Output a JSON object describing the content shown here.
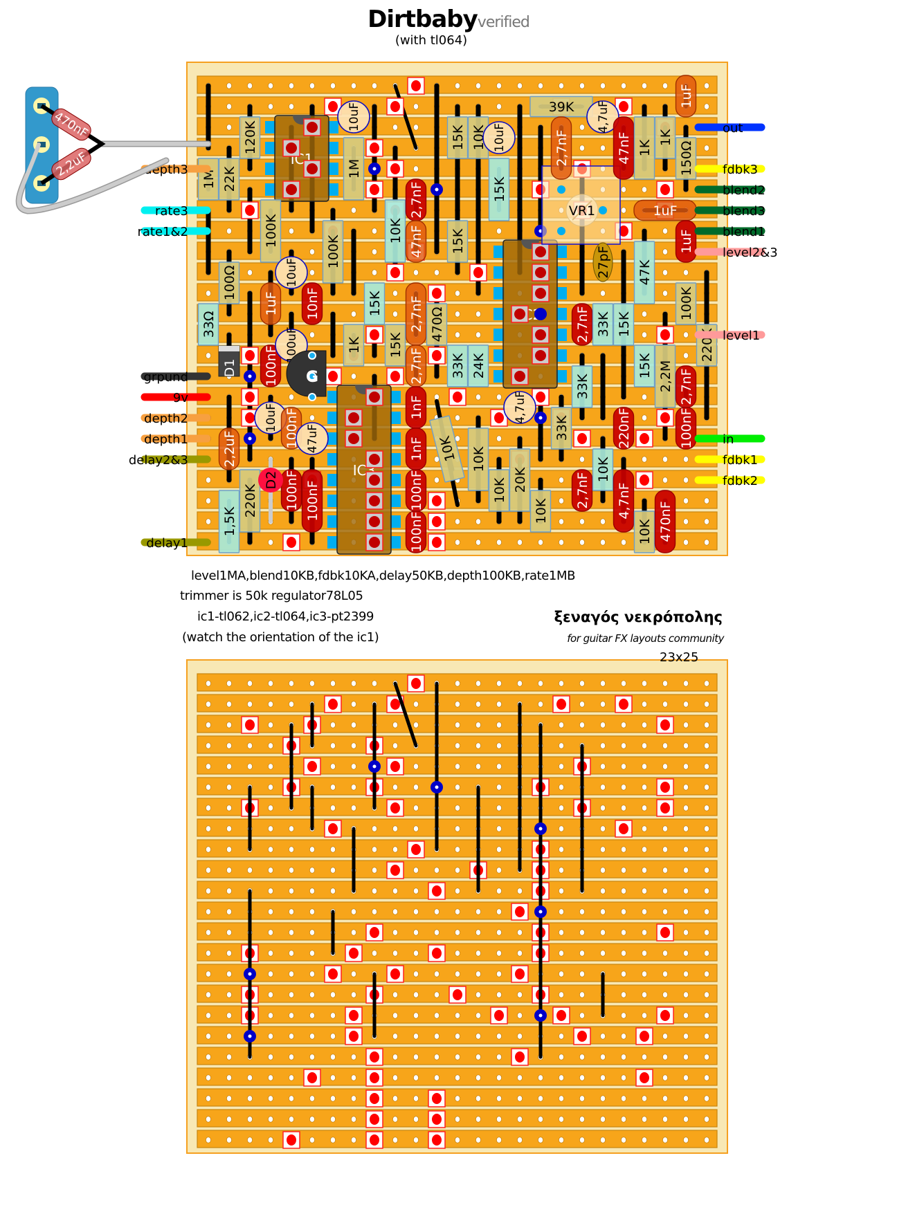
{
  "title": {
    "name": "Dirtbaby",
    "badge": "verified",
    "subtitle": "(with tl064)"
  },
  "notes": [
    "level1MA,blend10KB,fdbk10KA,delay50KB,depth100KB,rate1MB",
    "trimmer is 50k  regulator78L05",
    "ic1-tl062,ic2-tl064,ic3-pt2399",
    "(watch the orientation of the ic1)"
  ],
  "credit": {
    "author": "ξεναγός νεκρόπολης",
    "tagline": "for guitar FX layouts community",
    "size": "23x25"
  },
  "colors": {
    "strip": "#f7a51a",
    "board": "#f8e8b4",
    "cut": "#ff0000",
    "via": "#0000c8",
    "resistor": "#d6ca7e",
    "resistor_alt": "#a8e8d8",
    "film_cap": "#c80000",
    "tantalum": "#e05a10",
    "electrolytic": "#fde2b4"
  },
  "offboard": {
    "cap_a": "470nF",
    "cap_b": "2,2uF"
  },
  "wires_left": [
    {
      "label": "depth3",
      "color": "#f7a040"
    },
    {
      "label": "rate3",
      "color": "#00f0f0"
    },
    {
      "label": "rate1&2",
      "color": "#00f0f0"
    },
    {
      "label": "grpund",
      "color": "#333333"
    },
    {
      "label": "9v",
      "color": "#ff0000"
    },
    {
      "label": "depth2",
      "color": "#f7a040"
    },
    {
      "label": "depth1",
      "color": "#f7a040"
    },
    {
      "label": "delay2&3",
      "color": "#999900"
    },
    {
      "label": "delay1",
      "color": "#999900"
    }
  ],
  "wires_right": [
    {
      "label": "out",
      "color": "#0033ff"
    },
    {
      "label": "fdbk3",
      "color": "#ffff00"
    },
    {
      "label": "blend2",
      "color": "#006a2a"
    },
    {
      "label": "blend3",
      "color": "#006a2a"
    },
    {
      "label": "blend1",
      "color": "#006a2a"
    },
    {
      "label": "level2&3",
      "color": "#ff9a9a"
    },
    {
      "label": "level1",
      "color": "#ff9a9a"
    },
    {
      "label": "in",
      "color": "#00ee00"
    },
    {
      "label": "fdbk1",
      "color": "#ffff00"
    },
    {
      "label": "fdbk2",
      "color": "#ffff00"
    }
  ],
  "parts": {
    "ic1": "IC1",
    "ic2": "IC2",
    "ic3": "IC3",
    "vr1": "VR1",
    "d1": "D1",
    "d2": "D2",
    "regulator": "G"
  },
  "components": [
    "1M",
    "22K",
    "120K",
    "1M",
    "100K",
    "100K",
    "10K",
    "2,7nF",
    "47nF",
    "10uF",
    "10uF",
    "100Ω",
    "15K",
    "15K",
    "10K",
    "10uF",
    "15K",
    "39K",
    "4,7uF",
    "1uF",
    "2,7nF",
    "47nF",
    "1K",
    "1K",
    "150Ω",
    "1uF",
    "1uF",
    "47K",
    "27pF",
    "100K",
    "220K",
    "1uF",
    "10nF",
    "15K",
    "2,7nF",
    "470Ω",
    "33Ω",
    "1K",
    "15K",
    "100nF",
    "100uF",
    "2,7nF",
    "33K",
    "24K",
    "2,7nF",
    "33K",
    "15K",
    "15K",
    "2,2M",
    "2,7nF",
    "100nF",
    "33K",
    "33K",
    "220nF",
    "4,7uF",
    "1nF",
    "1nF",
    "100nF",
    "100nF",
    "10K",
    "2,2uF",
    "10uF",
    "100nF",
    "47uF",
    "100nF",
    "100nF",
    "1,5K",
    "220K",
    "10K",
    "10K",
    "20K",
    "10K",
    "2,7nF",
    "10K",
    "4,7nF",
    "10K",
    "470nF"
  ]
}
